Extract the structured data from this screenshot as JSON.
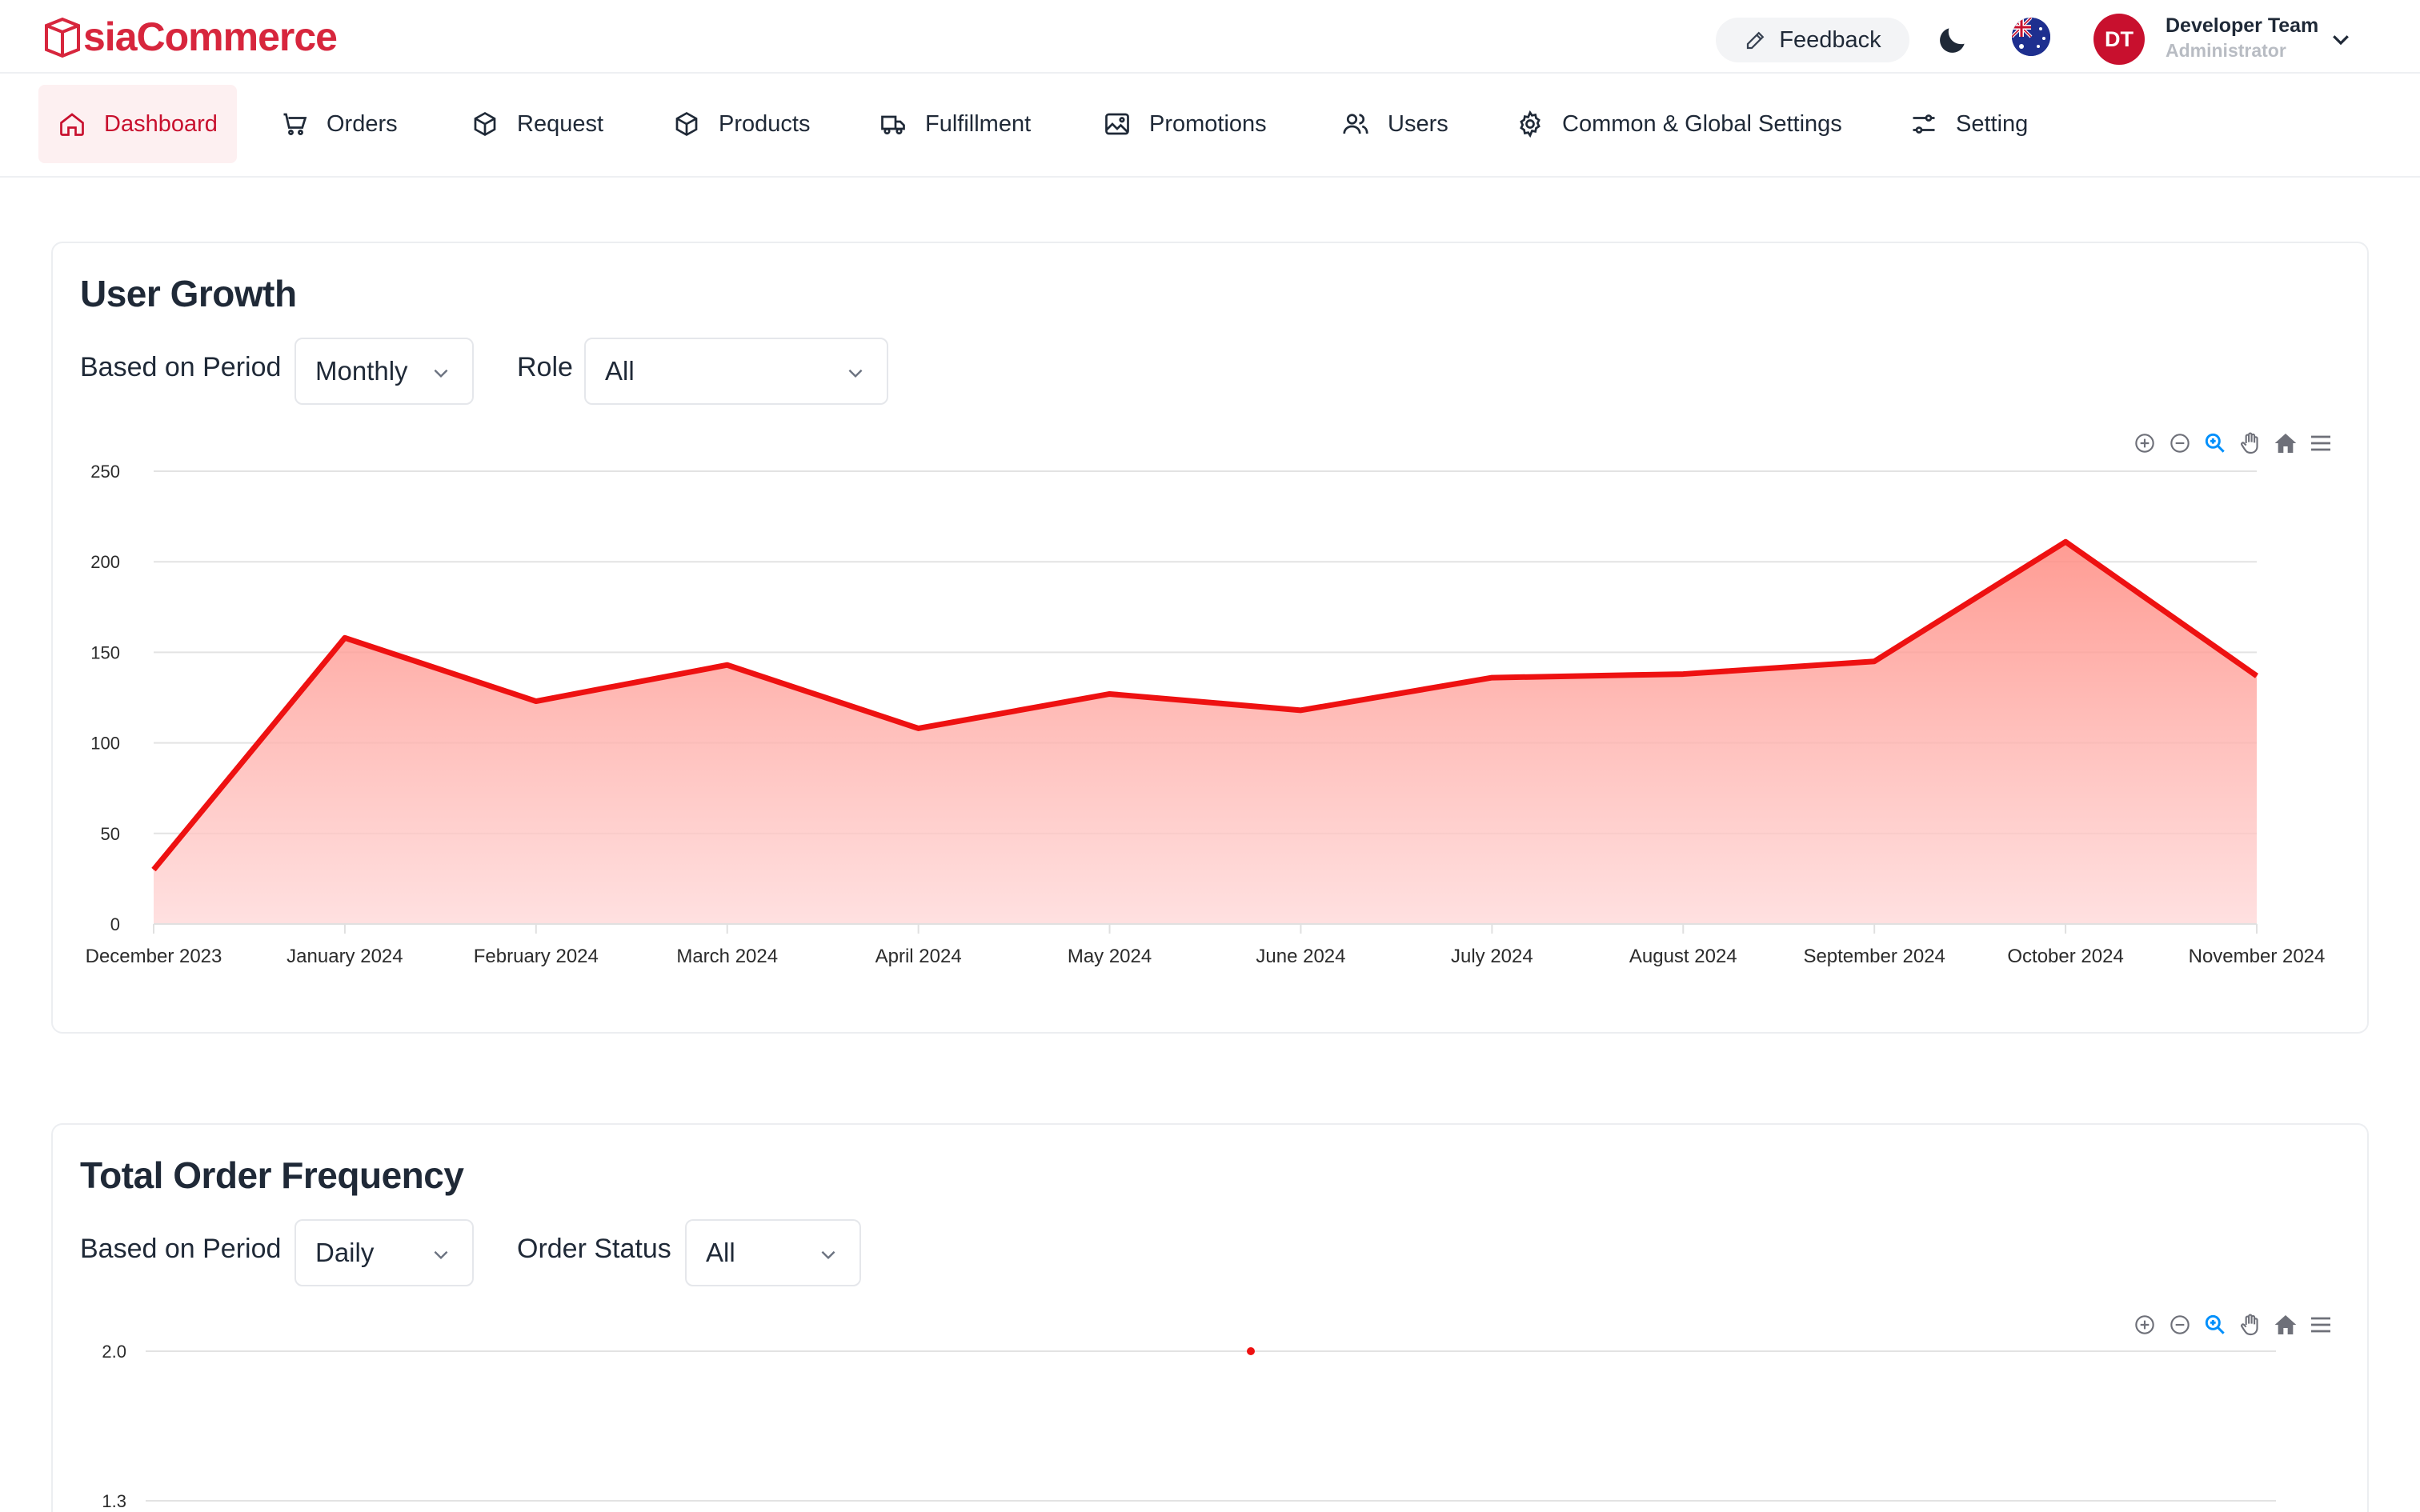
{
  "app": {
    "logo_text_a": "A",
    "logo_text_b": "siaCommerce",
    "brand_color": "#c8102e"
  },
  "header": {
    "feedback_label": "Feedback",
    "user_initials": "DT",
    "user_name": "Developer Team",
    "user_role": "Administrator",
    "icons": [
      "edit-pen-icon",
      "moon-icon",
      "australia-flag-icon",
      "chevron-down-icon"
    ]
  },
  "nav": {
    "items": [
      {
        "label": "Dashboard",
        "icon": "home-icon",
        "active": true
      },
      {
        "label": "Orders",
        "icon": "cart-icon"
      },
      {
        "label": "Request",
        "icon": "box-icon"
      },
      {
        "label": "Products",
        "icon": "box-icon"
      },
      {
        "label": "Fulfillment",
        "icon": "truck-icon"
      },
      {
        "label": "Promotions",
        "icon": "image-icon"
      },
      {
        "label": "Users",
        "icon": "users-icon"
      },
      {
        "label": "Common & Global Settings",
        "icon": "gear-icon"
      },
      {
        "label": "Setting",
        "icon": "sliders-icon"
      }
    ]
  },
  "user_growth": {
    "title": "User Growth",
    "period_label": "Based on Period",
    "period_value": "Monthly",
    "role_label": "Role",
    "role_value": "All"
  },
  "order_frequency": {
    "title": "Total Order Frequency",
    "period_label": "Based on Period",
    "period_value": "Daily",
    "status_label": "Order Status",
    "status_value": "All"
  },
  "toolbar_icons": [
    "zoom-in-icon",
    "zoom-out-icon",
    "zoom-select-icon",
    "pan-hand-icon",
    "reset-home-icon",
    "menu-icon"
  ],
  "chart_data": [
    {
      "type": "area",
      "title": "",
      "categories": [
        "December 2023",
        "January 2024",
        "February 2024",
        "March 2024",
        "April 2024",
        "May 2024",
        "June 2024",
        "July 2024",
        "August 2024",
        "September 2024",
        "October 2024",
        "November 2024"
      ],
      "values": [
        30,
        158,
        123,
        143,
        108,
        127,
        118,
        136,
        138,
        145,
        211,
        137
      ],
      "ylim": [
        0,
        250
      ],
      "yticks": [
        0,
        50,
        100,
        150,
        200,
        250
      ],
      "grid": true,
      "line_color": "#ee1111"
    },
    {
      "type": "scatter",
      "title": "",
      "ylim": [
        1.3,
        2.0
      ],
      "yticks": [
        "2.0",
        "1.3"
      ],
      "grid": true,
      "points": [
        {
          "y": 2.0
        }
      ],
      "point_color": "#ee1111"
    }
  ]
}
